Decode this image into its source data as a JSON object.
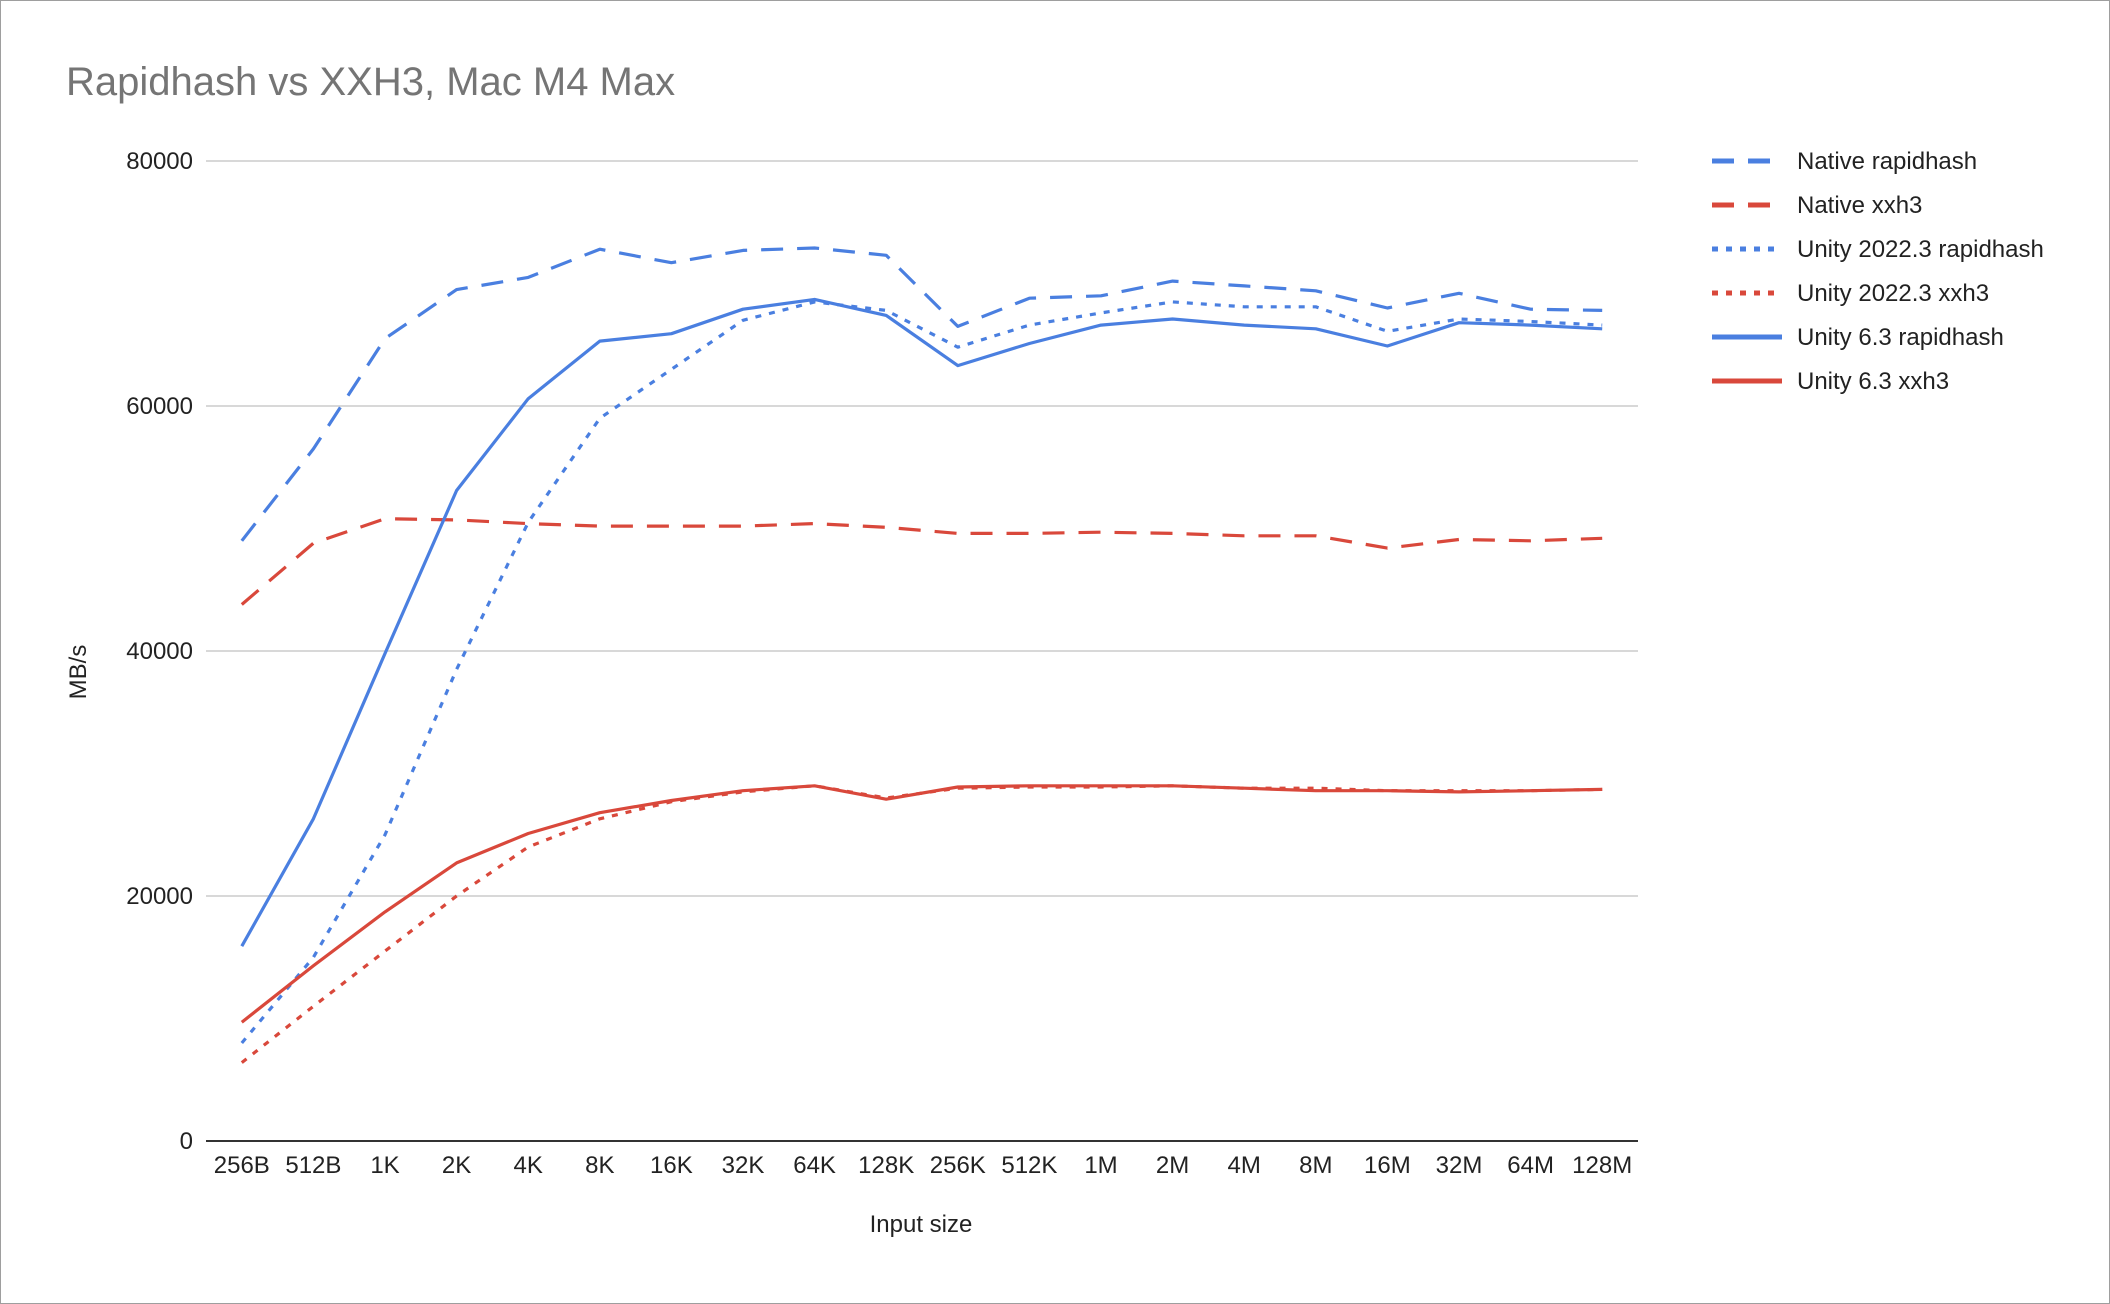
{
  "chart_data": {
    "type": "line",
    "title": "Rapidhash vs XXH3, Mac M4 Max",
    "xlabel": "Input size",
    "ylabel": "MB/s",
    "ylim": [
      0,
      80000
    ],
    "yticks": [
      0,
      20000,
      40000,
      60000,
      80000
    ],
    "grid": true,
    "legend_position": "right",
    "categories": [
      "256B",
      "512B",
      "1K",
      "2K",
      "4K",
      "8K",
      "16K",
      "32K",
      "64K",
      "128K",
      "256K",
      "512K",
      "1M",
      "2M",
      "4M",
      "8M",
      "16M",
      "32M",
      "64M",
      "128M"
    ],
    "series": [
      {
        "name": "Native rapidhash",
        "color": "#4a7fe0",
        "dash": "dashed",
        "values": [
          49000,
          56500,
          65500,
          69500,
          70500,
          72800,
          71700,
          72700,
          72900,
          72300,
          66500,
          68800,
          69000,
          70200,
          69800,
          69400,
          68000,
          69200,
          67900,
          67800
        ]
      },
      {
        "name": "Native xxh3",
        "color": "#d9483b",
        "dash": "dashed",
        "values": [
          43800,
          48800,
          50800,
          50700,
          50400,
          50200,
          50200,
          50200,
          50400,
          50100,
          49600,
          49600,
          49700,
          49600,
          49400,
          49400,
          48400,
          49100,
          49000,
          49200
        ]
      },
      {
        "name": "Unity 2022.3 rapidhash",
        "color": "#4a7fe0",
        "dash": "dotted",
        "values": [
          8000,
          15000,
          25000,
          38500,
          50500,
          59000,
          63000,
          67000,
          68500,
          67800,
          64800,
          66600,
          67600,
          68500,
          68100,
          68100,
          66100,
          67100,
          66900,
          66600
        ]
      },
      {
        "name": "Unity 2022.3 xxh3",
        "color": "#d9483b",
        "dash": "dotted",
        "values": [
          6400,
          11000,
          15500,
          20000,
          24000,
          26300,
          27700,
          28500,
          29000,
          28000,
          28800,
          28900,
          28900,
          29000,
          28800,
          28800,
          28600,
          28600,
          28600,
          28700
        ]
      },
      {
        "name": "Unity 6.3 rapidhash",
        "color": "#4a7fe0",
        "dash": "solid",
        "values": [
          15900,
          26300,
          39800,
          53100,
          60600,
          65300,
          65900,
          67900,
          68700,
          67400,
          63300,
          65100,
          66600,
          67100,
          66600,
          66300,
          64900,
          66800,
          66600,
          66300
        ]
      },
      {
        "name": "Unity 6.3 xxh3",
        "color": "#d9483b",
        "dash": "solid",
        "values": [
          9700,
          14300,
          18700,
          22700,
          25100,
          26800,
          27800,
          28600,
          29000,
          27900,
          28900,
          29000,
          29000,
          29000,
          28800,
          28600,
          28600,
          28500,
          28600,
          28700
        ]
      }
    ]
  }
}
